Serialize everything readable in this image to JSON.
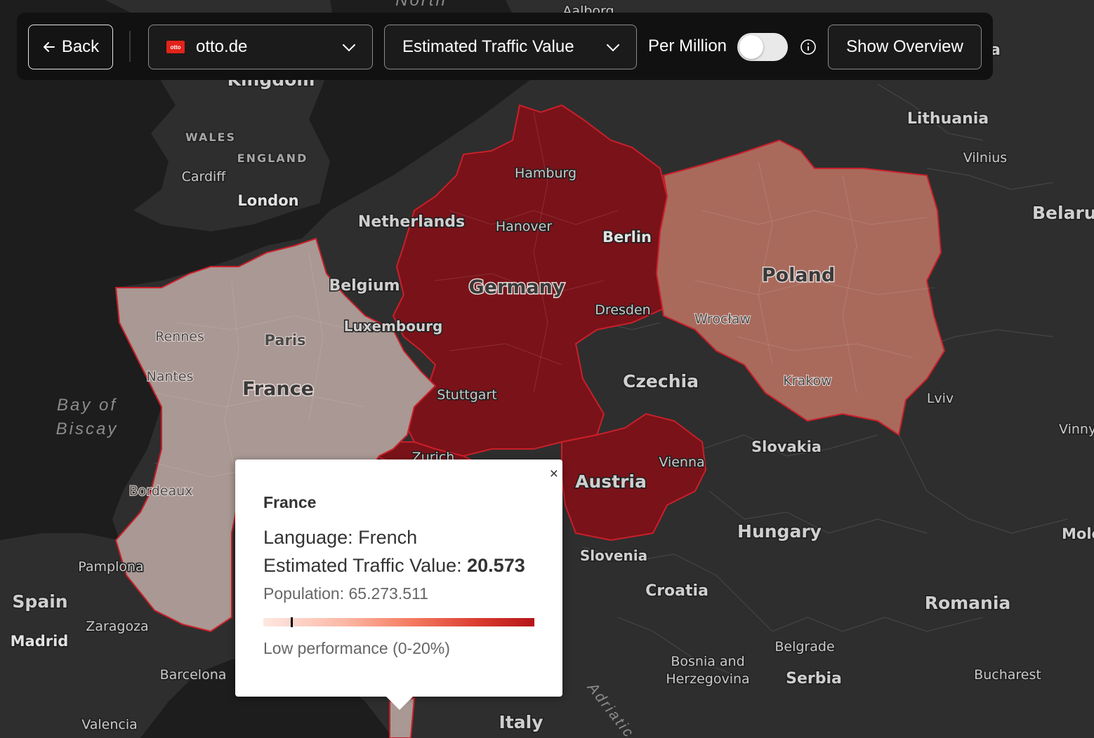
{
  "toolbar": {
    "back_label": "Back",
    "site": {
      "name": "otto.de",
      "logo_text": "otto"
    },
    "metric": "Estimated Traffic Value",
    "per_million_label": "Per Million",
    "per_million_on": false,
    "overview_label": "Show Overview"
  },
  "map": {
    "theme": "dark",
    "highlight_colors": {
      "Germany": "#7a1219",
      "Austria": "#7a1219",
      "Switzerland": "#7a1219",
      "Poland": "#a96a5c",
      "France": "#a99893"
    },
    "border_color": "#c8202a",
    "country_labels": [
      "Germany",
      "France",
      "Poland",
      "Czechia",
      "Austria",
      "Slovakia",
      "Hungary",
      "Slovenia",
      "Croatia",
      "Romania",
      "Spain",
      "Serbia",
      "Italy",
      "Belgium",
      "Netherlands",
      "Luxembourg",
      "Lithuania",
      "Bosnia and",
      "Herzegovina",
      "Kingdom",
      "Belaru",
      "Molc",
      "a"
    ],
    "city_labels": [
      "Hamburg",
      "Berlin",
      "Hanover",
      "Dresden",
      "Stuttgart",
      "Zurich",
      "Vienna",
      "Paris",
      "Rennes",
      "Nantes",
      "Bordeaux",
      "London",
      "Cardiff",
      "Wrocław",
      "Krakow",
      "Lviv",
      "Vilnius",
      "Vinny",
      "Belgrade",
      "Bucharest",
      "Pamplona",
      "Zaragoza",
      "Madrid",
      "Barcelona",
      "Valencia",
      "Aalborg"
    ],
    "region_labels": [
      "WALES",
      "ENGLAND"
    ],
    "water_labels": [
      "North",
      "Bay of",
      "Biscay",
      "Adriatic"
    ]
  },
  "popup": {
    "country": "France",
    "language_label": "Language: French",
    "value_label": "Estimated Traffic Value: ",
    "value": "20.573",
    "population_label": "Population: 65.273.511",
    "performance_fraction": 0.1,
    "performance_label": "Low performance (0-20%)",
    "close_label": "×"
  }
}
